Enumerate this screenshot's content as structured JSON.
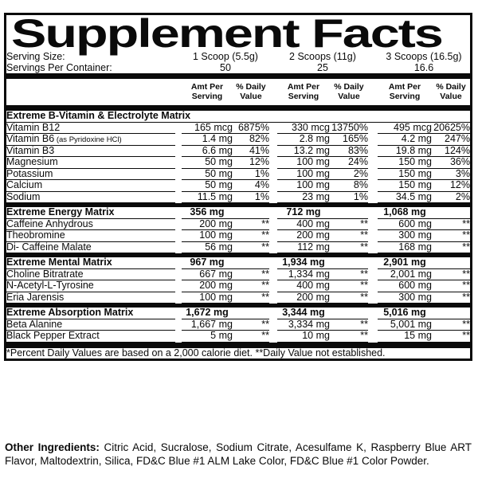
{
  "title": "Supplement Facts",
  "serving": {
    "size_label": "Serving Size:",
    "size_values": [
      "1 Scoop (5.5g)",
      "2 Scoops (11g)",
      "3 Scoops (16.5g)"
    ],
    "container_label": "Servings Per Container:",
    "container_values": [
      "50",
      "25",
      "16.6"
    ]
  },
  "column_headers": {
    "amt_line1": "Amt Per",
    "amt_line2": "Serving",
    "dv_line1": "% Daily",
    "dv_line2": "Value"
  },
  "sections": [
    {
      "name": "Extreme B-Vitamin & Electrolyte Matrix",
      "rows": [
        {
          "name": "Vitamin B12",
          "values": [
            "165 mcg",
            "6875%",
            "330 mcg",
            "13750%",
            "495 mcg",
            "20625%"
          ]
        },
        {
          "name": "Vitamin B6",
          "name_sub": "(as Pyridoxine HCl)",
          "values": [
            "1.4 mg",
            "82%",
            "2.8 mg",
            "165%",
            "4.2 mg",
            "247%"
          ]
        },
        {
          "name": "Vitamin B3",
          "values": [
            "6.6 mg",
            "41%",
            "13.2 mg",
            "83%",
            "19.8 mg",
            "124%"
          ]
        },
        {
          "name": "Magnesium",
          "values": [
            "50 mg",
            "12%",
            "100 mg",
            "24%",
            "150 mg",
            "36%"
          ]
        },
        {
          "name": "Potassium",
          "values": [
            "50 mg",
            "1%",
            "100 mg",
            "2%",
            "150 mg",
            "3%"
          ]
        },
        {
          "name": "Calcium",
          "values": [
            "50 mg",
            "4%",
            "100 mg",
            "8%",
            "150 mg",
            "12%"
          ]
        },
        {
          "name": "Sodium",
          "values": [
            "11.5 mg",
            "1%",
            "23 mg",
            "1%",
            "34.5 mg",
            "2%"
          ]
        }
      ]
    },
    {
      "name": "Extreme Energy Matrix",
      "amounts": [
        "356 mg",
        "712 mg",
        "1,068 mg"
      ],
      "rows": [
        {
          "name": "Caffeine Anhydrous",
          "values": [
            "200 mg",
            "**",
            "400 mg",
            "**",
            "600 mg",
            "**"
          ]
        },
        {
          "name": "Theobromine",
          "values": [
            "100 mg",
            "**",
            "200 mg",
            "**",
            "300 mg",
            "**"
          ]
        },
        {
          "name": "Di- Caffeine Malate",
          "values": [
            "56 mg",
            "**",
            "112 mg",
            "**",
            "168 mg",
            "**"
          ]
        }
      ]
    },
    {
      "name": "Extreme Mental Matrix",
      "amounts": [
        "967 mg",
        "1,934 mg",
        "2,901 mg"
      ],
      "rows": [
        {
          "name": "Choline Bitratrate",
          "values": [
            "667 mg",
            "**",
            "1,334 mg",
            "**",
            "2,001 mg",
            "**"
          ]
        },
        {
          "name": "N-Acetyl-L-Tyrosine",
          "values": [
            "200 mg",
            "**",
            "400 mg",
            "**",
            "600 mg",
            "**"
          ]
        },
        {
          "name": "Eria Jarensis",
          "values": [
            "100 mg",
            "**",
            "200 mg",
            "**",
            "300 mg",
            "**"
          ]
        }
      ]
    },
    {
      "name": "Extreme Absorption Matrix",
      "amounts": [
        "1,672 mg",
        "3,344 mg",
        "5,016 mg"
      ],
      "rows": [
        {
          "name": "Beta Alanine",
          "values": [
            "1,667 mg",
            "**",
            "3,334 mg",
            "**",
            "5,001 mg",
            "**"
          ]
        },
        {
          "name": "Black Pepper Extract",
          "values": [
            "5 mg",
            "**",
            "10 mg",
            "**",
            "15 mg",
            "**"
          ]
        }
      ]
    }
  ],
  "footnote": "*Percent Daily Values are based on a 2,000 calorie diet. **Daily Value not established.",
  "other_ingredients": {
    "label": "Other Ingredients:",
    "text": " Citric Acid, Sucralose, Sodium Citrate, Acesulfame K, Raspberry Blue ART Flavor, Maltodextrin, Silica, FD&C Blue #1 ALM Lake Color, FD&C Blue #1 Color Powder."
  },
  "colors": {
    "ink": "#0a0a0a",
    "paper": "#ffffff"
  }
}
